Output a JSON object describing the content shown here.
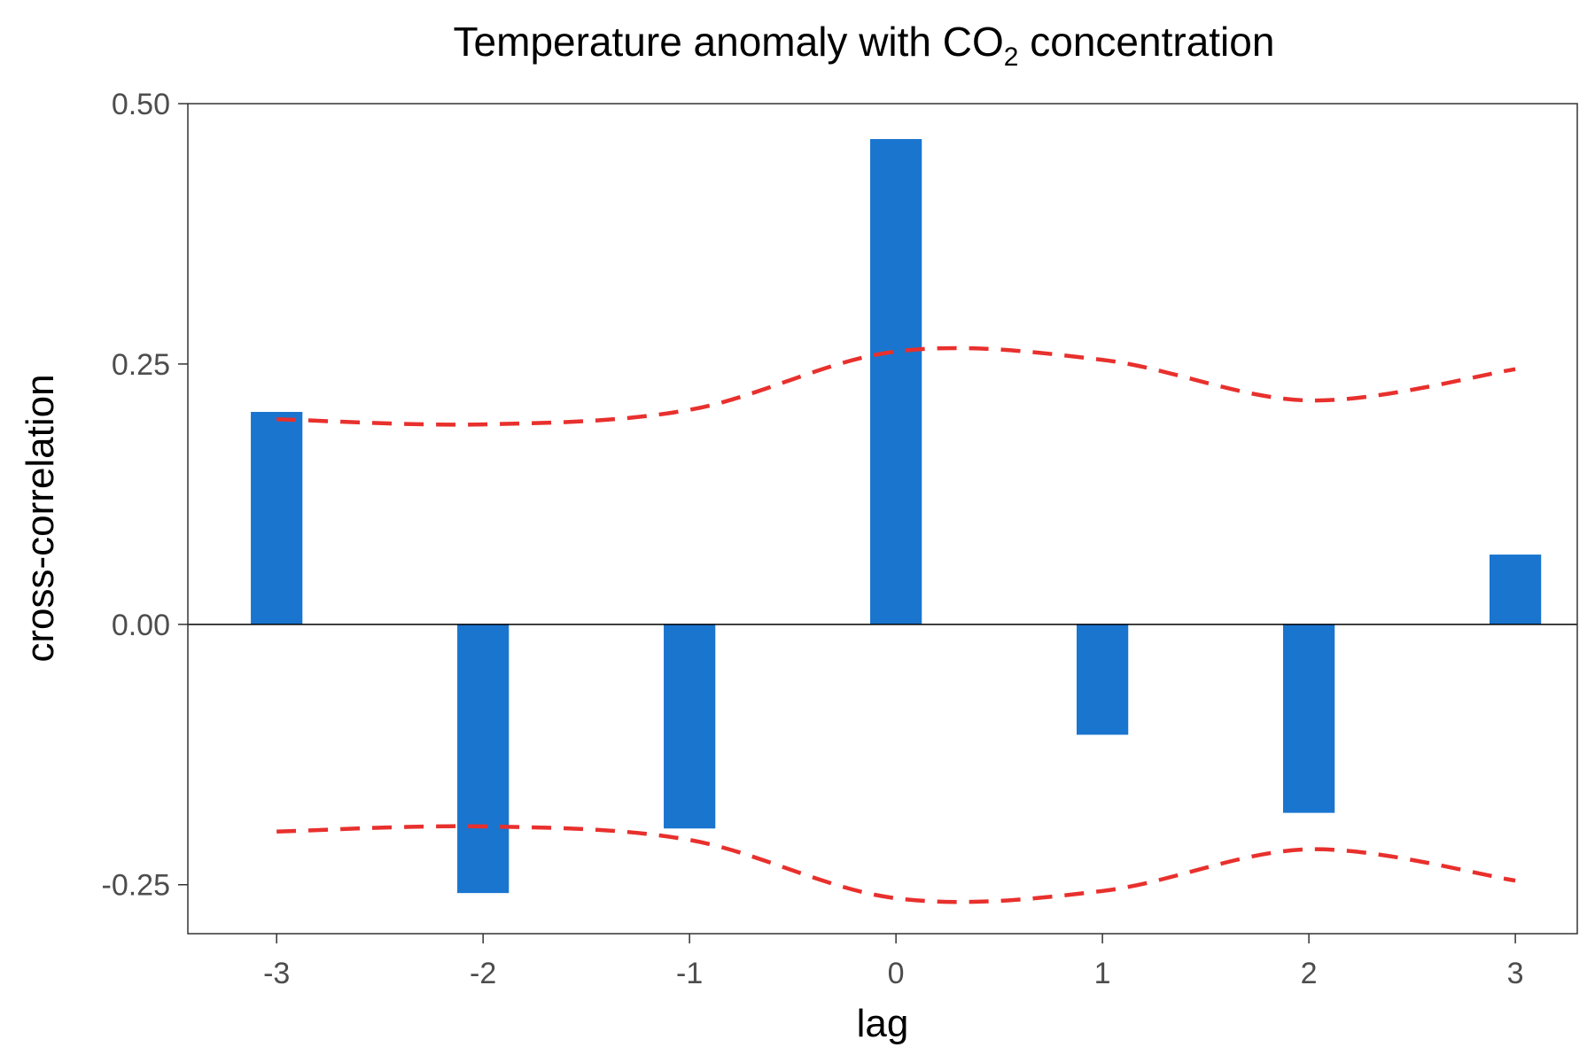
{
  "chart_data": {
    "type": "bar",
    "title": {
      "prefix": "Temperature anomaly with CO",
      "subscript": "2",
      "suffix": " concentration"
    },
    "xlabel": "lag",
    "ylabel": "cross-correlation",
    "x": [
      -3,
      -2,
      -1,
      0,
      1,
      2,
      3
    ],
    "x_tick_labels": [
      "-3",
      "-2",
      "-1",
      "0",
      "1",
      "2",
      "3"
    ],
    "y_ticks": [
      -0.25,
      0.0,
      0.25,
      0.5
    ],
    "y_tick_labels": [
      "-0.25",
      "0.00",
      "0.25",
      "0.50"
    ],
    "xlim": [
      -3.43,
      3.3
    ],
    "ylim": [
      -0.297,
      0.5
    ],
    "series": [
      {
        "values": [
          0.204,
          -0.258,
          -0.196,
          0.466,
          -0.106,
          -0.181,
          0.067
        ],
        "color": "#1a75cf"
      }
    ],
    "bounds": {
      "upper": [
        0.197,
        0.192,
        0.206,
        0.262,
        0.254,
        0.215,
        0.245
      ],
      "lower": [
        -0.199,
        -0.194,
        -0.207,
        -0.263,
        -0.256,
        -0.216,
        -0.246
      ],
      "color": "#e8302d",
      "style": "dashed"
    },
    "zero_line": true,
    "grid": false
  }
}
